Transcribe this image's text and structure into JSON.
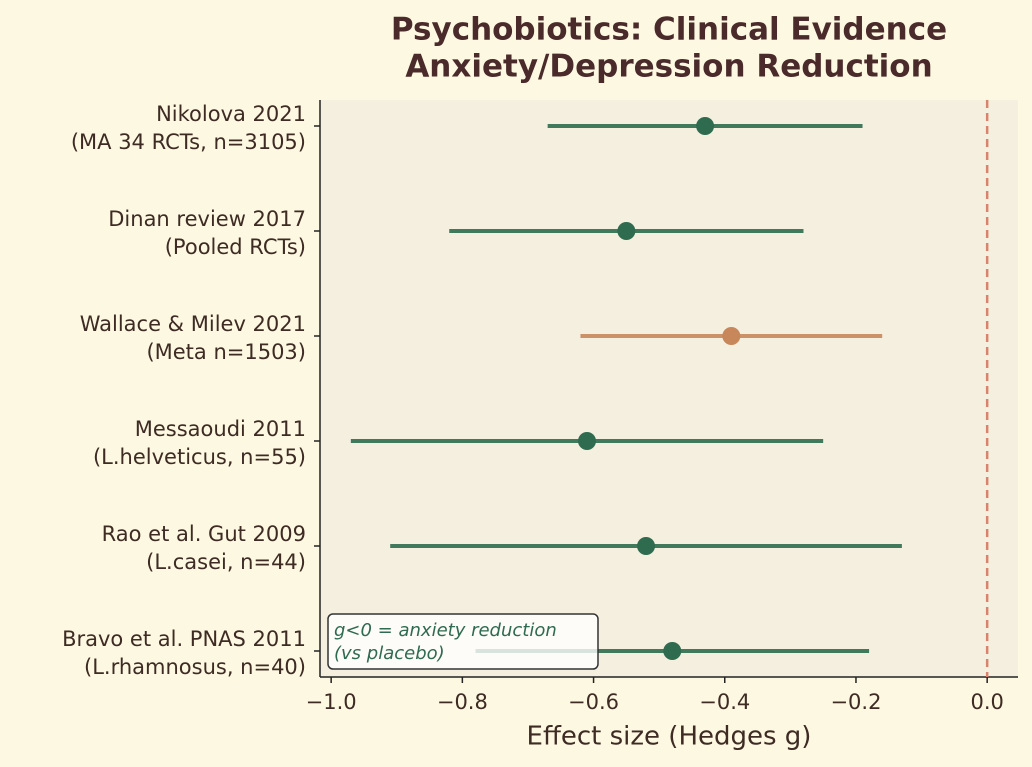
{
  "chart_data": {
    "type": "forest",
    "title": [
      "Psychobiotics: Clinical Evidence",
      "Anxiety/Depression Reduction"
    ],
    "xlabel": "Effect size (Hedges g)",
    "categories": [
      [
        "Nikolova 2021",
        "(MA 34 RCTs, n=3105)"
      ],
      [
        "Dinan review 2017",
        "(Pooled RCTs)"
      ],
      [
        "Wallace & Milev 2021",
        "(Meta n=1503)"
      ],
      [
        "Messaoudi 2011",
        "(L.helveticus, n=55)"
      ],
      [
        "Rao et al. Gut 2009",
        "(L.casei, n=44)"
      ],
      [
        "Bravo et al. PNAS 2011",
        "(L.rhamnosus, n=40)"
      ]
    ],
    "values": [
      -0.43,
      -0.55,
      -0.39,
      -0.61,
      -0.52,
      -0.48
    ],
    "lower": [
      -0.67,
      -0.82,
      -0.62,
      -0.97,
      -0.91,
      -0.78
    ],
    "upper": [
      -0.19,
      -0.28,
      -0.16,
      -0.25,
      -0.13,
      -0.18
    ],
    "colors": [
      "#2e6b4f",
      "#2e6b4f",
      "#c8875a",
      "#2e6b4f",
      "#2e6b4f",
      "#2e6b4f"
    ],
    "xlim": [
      -1.017,
      0.047
    ],
    "xticks": [
      {
        "value": -1.0,
        "label": "−1.0"
      },
      {
        "value": -0.8,
        "label": "−0.8"
      },
      {
        "value": -0.6,
        "label": "−0.6"
      },
      {
        "value": -0.4,
        "label": "−0.4"
      },
      {
        "value": -0.2,
        "label": "−0.2"
      },
      {
        "value": 0.0,
        "label": "0.0"
      }
    ],
    "reference_line": {
      "x": 0,
      "color": "#d9826e"
    },
    "annotation": [
      "g<0 = anxiety reduction",
      "(vs placebo)"
    ]
  }
}
